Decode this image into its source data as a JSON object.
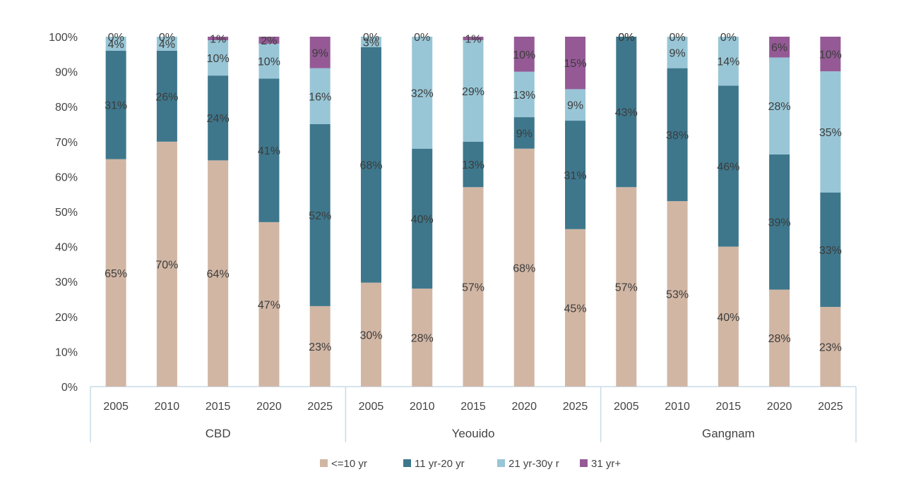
{
  "chart_data": {
    "type": "bar",
    "stacked": true,
    "title": "",
    "xlabel": "",
    "ylabel": "",
    "ylim": [
      0,
      100
    ],
    "y_ticks": [
      "0%",
      "10%",
      "20%",
      "30%",
      "40%",
      "50%",
      "60%",
      "70%",
      "80%",
      "90%",
      "100%"
    ],
    "groups": [
      "CBD",
      "Yeouido",
      "Gangnam"
    ],
    "categories": [
      "2005",
      "2010",
      "2015",
      "2020",
      "2025",
      "2005",
      "2010",
      "2015",
      "2020",
      "2025",
      "2005",
      "2010",
      "2015",
      "2020",
      "2025"
    ],
    "category_groups": [
      0,
      0,
      0,
      0,
      0,
      1,
      1,
      1,
      1,
      1,
      2,
      2,
      2,
      2,
      2
    ],
    "series": [
      {
        "name": "<=10 yr",
        "color": "#d1b6a4",
        "values": [
          65,
          70,
          64,
          47,
          23,
          30,
          28,
          57,
          68,
          45,
          57,
          53,
          40,
          28,
          23
        ],
        "labels": [
          "65%",
          "70%",
          "64%",
          "47%",
          "23%",
          "30%",
          "28%",
          "57%",
          "68%",
          "45%",
          "57%",
          "53%",
          "40%",
          "28%",
          "23%"
        ]
      },
      {
        "name": "11 yr-20 yr",
        "color": "#3e778c",
        "values": [
          31,
          26,
          24,
          41,
          52,
          68,
          40,
          13,
          9,
          31,
          43,
          38,
          46,
          39,
          33
        ],
        "labels": [
          "31%",
          "26%",
          "24%",
          "41%",
          "52%",
          "68%",
          "40%",
          "13%",
          "9%",
          "31%",
          "43%",
          "38%",
          "46%",
          "39%",
          "33%"
        ]
      },
      {
        "name": "21 yr-30y r",
        "color": "#98c6d6",
        "values": [
          4,
          4,
          10,
          10,
          16,
          3,
          32,
          29,
          13,
          9,
          0,
          9,
          14,
          28,
          35
        ],
        "labels": [
          "4%",
          "4%",
          "10%",
          "10%",
          "16%",
          "3%",
          "32%",
          "29%",
          "13%",
          "9%",
          "0%",
          "9%",
          "14%",
          "28%",
          "35%"
        ]
      },
      {
        "name": "31 yr+",
        "color": "#955a96",
        "values": [
          0,
          0,
          1,
          2,
          9,
          0,
          0,
          1,
          10,
          15,
          0,
          0,
          0,
          6,
          10
        ],
        "labels": [
          "0%",
          "0%",
          "1%",
          "2%",
          "9%",
          "0%",
          "0%",
          "1%",
          "10%",
          "15%",
          "0%",
          "0%",
          "0%",
          "6%",
          "10%"
        ]
      }
    ],
    "legend_position": "bottom-center",
    "grid": false
  }
}
